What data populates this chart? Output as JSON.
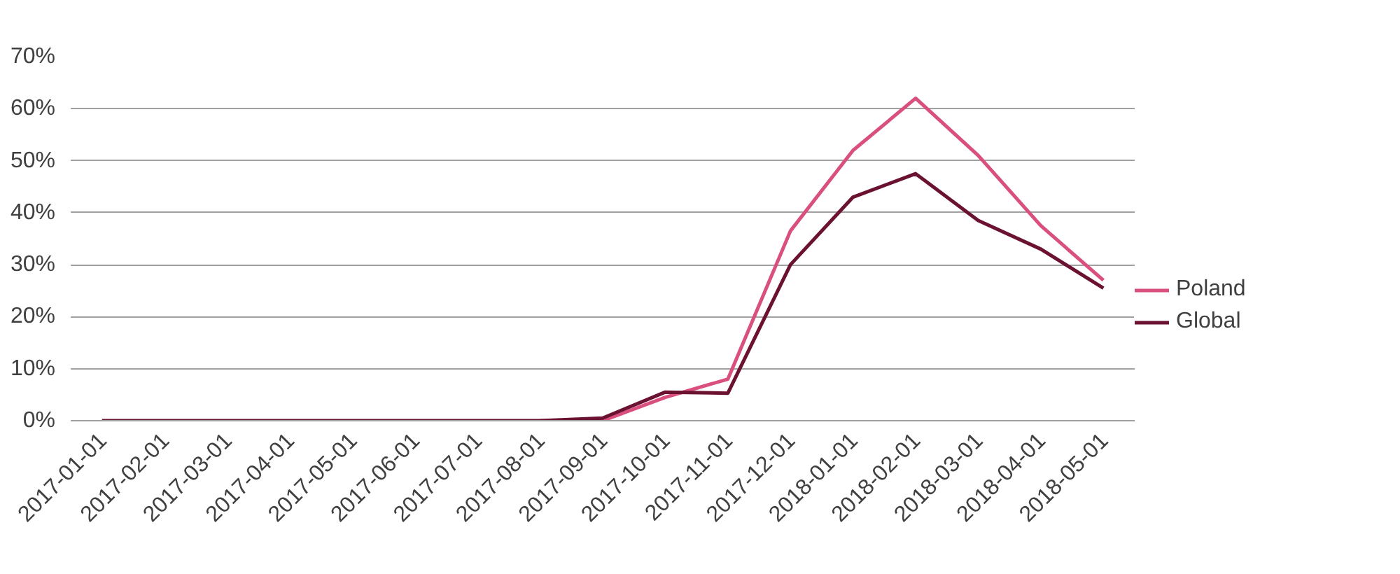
{
  "chart_data": {
    "type": "line",
    "categories": [
      "2017-01-01",
      "2017-02-01",
      "2017-03-01",
      "2017-04-01",
      "2017-05-01",
      "2017-06-01",
      "2017-07-01",
      "2017-08-01",
      "2017-09-01",
      "2017-10-01",
      "2017-11-01",
      "2017-12-01",
      "2018-01-01",
      "2018-02-01",
      "2018-03-01",
      "2018-04-01",
      "2018-05-01"
    ],
    "series": [
      {
        "name": "Poland",
        "color": "#d9507e",
        "values": [
          null,
          null,
          null,
          null,
          null,
          null,
          null,
          0,
          0,
          4.5,
          8,
          36.5,
          52,
          62,
          51,
          37.5,
          27
        ]
      },
      {
        "name": "Global",
        "color": "#6b1131",
        "values": [
          0,
          0,
          0,
          0,
          0,
          0,
          0,
          0,
          0.5,
          5.5,
          5.3,
          30,
          43,
          47.5,
          38.5,
          33,
          25.5
        ]
      }
    ],
    "ylim": [
      0,
      70
    ],
    "yticks": [
      {
        "value": 0,
        "label": "0%"
      },
      {
        "value": 10,
        "label": "10%"
      },
      {
        "value": 20,
        "label": "20%"
      },
      {
        "value": 30,
        "label": "30%"
      },
      {
        "value": 40,
        "label": "40%"
      },
      {
        "value": 50,
        "label": "50%"
      },
      {
        "value": 60,
        "label": "60%"
      },
      {
        "value": 70,
        "label": "70%"
      }
    ],
    "grid": "y",
    "legend": "right",
    "marker": "none",
    "line_style": "solid"
  }
}
